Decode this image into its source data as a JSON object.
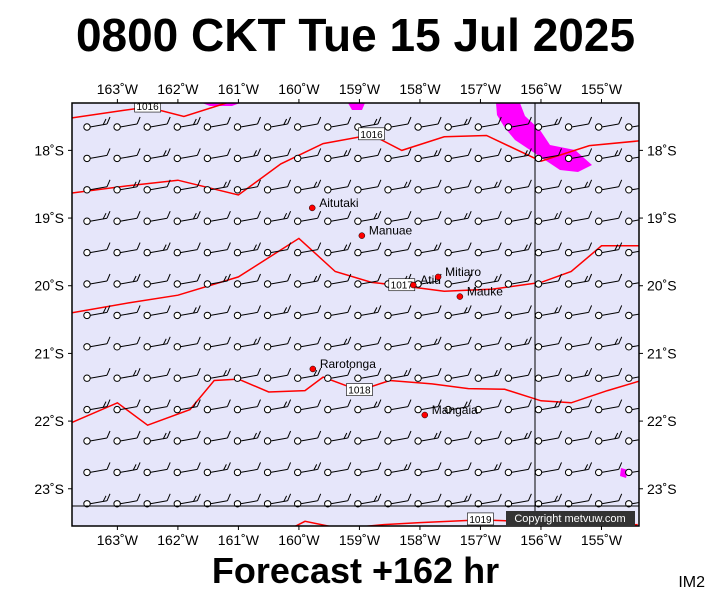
{
  "title": "0800 CKT Tue 15 Jul 2025",
  "footer": "Forecast +162 hr",
  "corner_label": "IM2",
  "copyright": "Copyright metvuw.com",
  "colors": {
    "background": "#e6e6fa",
    "isobar": "#ff0000",
    "precip": "#ff00ff",
    "station": "#ff0000"
  },
  "map": {
    "lon_range": [
      -163.75,
      -154.38
    ],
    "lat_range": [
      -23.55,
      -17.3
    ],
    "x_ticks": [
      {
        "lon": -163,
        "label": "163˚W"
      },
      {
        "lon": -162,
        "label": "162˚W"
      },
      {
        "lon": -161,
        "label": "161˚W"
      },
      {
        "lon": -160,
        "label": "160˚W"
      },
      {
        "lon": -159,
        "label": "159˚W"
      },
      {
        "lon": -158,
        "label": "158˚W"
      },
      {
        "lon": -157,
        "label": "157˚W"
      },
      {
        "lon": -156,
        "label": "156˚W"
      },
      {
        "lon": -155,
        "label": "155˚W"
      }
    ],
    "y_ticks": [
      {
        "lat": -18,
        "label": "18˚S"
      },
      {
        "lat": -19,
        "label": "19˚S"
      },
      {
        "lat": -20,
        "label": "20˚S"
      },
      {
        "lat": -21,
        "label": "21˚S"
      },
      {
        "lat": -22,
        "label": "22˚S"
      },
      {
        "lat": -23,
        "label": "23˚S"
      }
    ],
    "places": [
      {
        "name": "Aitutaki",
        "lon": -159.78,
        "lat": -18.85
      },
      {
        "name": "Manuae",
        "lon": -158.96,
        "lat": -19.26
      },
      {
        "name": "Atiu",
        "lon": -158.11,
        "lat": -19.99
      },
      {
        "name": "Mitiaro",
        "lon": -157.7,
        "lat": -19.87
      },
      {
        "name": "Mauke",
        "lon": -157.34,
        "lat": -20.16
      },
      {
        "name": "Rarotonga",
        "lon": -159.77,
        "lat": -21.23
      },
      {
        "name": "Mangaia",
        "lon": -157.92,
        "lat": -21.91
      }
    ],
    "isobars": [
      {
        "label": "1016",
        "points": [
          [
            -163.75,
            -17.52
          ],
          [
            -162.9,
            -17.41
          ],
          [
            -162.5,
            -17.36
          ],
          [
            -161.9,
            -17.5
          ],
          [
            -161.2,
            -17.3
          ]
        ]
      },
      {
        "label": "1016",
        "points": [
          [
            -163.75,
            -18.63
          ],
          [
            -162.8,
            -18.52
          ],
          [
            -162.0,
            -18.44
          ],
          [
            -161.0,
            -18.66
          ],
          [
            -160.3,
            -18.2
          ],
          [
            -159.6,
            -17.9
          ],
          [
            -158.8,
            -17.77
          ],
          [
            -158.3,
            -18.0
          ],
          [
            -157.6,
            -17.8
          ],
          [
            -156.9,
            -17.78
          ],
          [
            -156.0,
            -18.16
          ],
          [
            -155.2,
            -17.93
          ],
          [
            -154.38,
            -17.86
          ]
        ]
      },
      {
        "label": "1017",
        "points": [
          [
            -163.75,
            -20.4
          ],
          [
            -162.8,
            -20.25
          ],
          [
            -162.0,
            -20.14
          ],
          [
            -161.0,
            -19.87
          ],
          [
            -160.0,
            -19.3
          ],
          [
            -159.4,
            -19.79
          ],
          [
            -158.8,
            -19.95
          ],
          [
            -158.3,
            -20.0
          ],
          [
            -157.6,
            -20.08
          ],
          [
            -156.8,
            -20.05
          ],
          [
            -156.0,
            -19.95
          ],
          [
            -155.5,
            -19.79
          ],
          [
            -155.0,
            -19.41
          ],
          [
            -154.38,
            -19.41
          ]
        ]
      },
      {
        "label": "1018",
        "points": [
          [
            -163.75,
            -22.02
          ],
          [
            -163.0,
            -21.73
          ],
          [
            -162.5,
            -22.06
          ],
          [
            -161.8,
            -21.83
          ],
          [
            -161.4,
            -21.4
          ],
          [
            -161.0,
            -21.38
          ],
          [
            -160.5,
            -21.57
          ],
          [
            -159.9,
            -21.55
          ],
          [
            -159.6,
            -21.35
          ],
          [
            -159.0,
            -21.55
          ],
          [
            -158.5,
            -21.4
          ],
          [
            -157.8,
            -21.45
          ],
          [
            -157.2,
            -21.52
          ],
          [
            -156.6,
            -21.53
          ],
          [
            -156.0,
            -21.7
          ],
          [
            -155.5,
            -21.73
          ],
          [
            -154.9,
            -21.55
          ],
          [
            -154.38,
            -21.41
          ]
        ]
      },
      {
        "label": "1019",
        "points": [
          [
            -160.4,
            -23.71
          ],
          [
            -159.9,
            -23.48
          ],
          [
            -159.3,
            -23.59
          ],
          [
            -158.6,
            -23.53
          ],
          [
            -158.0,
            -23.5
          ],
          [
            -157.0,
            -23.46
          ],
          [
            -156.3,
            -23.48
          ],
          [
            -156.0,
            -23.59
          ],
          [
            -155.5,
            -23.5
          ],
          [
            -155.0,
            -23.55
          ],
          [
            -154.4,
            -23.53
          ]
        ]
      }
    ]
  }
}
